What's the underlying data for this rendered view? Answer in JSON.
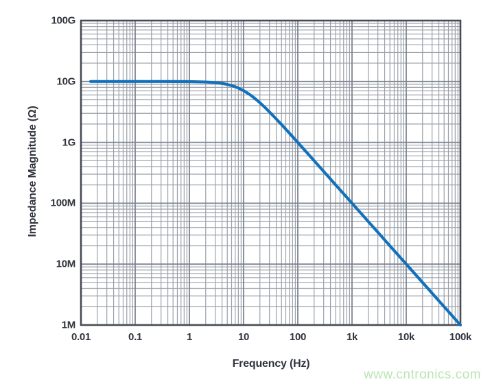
{
  "figure": {
    "background": "#ffffff"
  },
  "colors": {
    "curve": "#1271bc",
    "grid_minor": "#9aa0a9",
    "grid_major": "#7e8591",
    "frame": "#454a54",
    "text": "#2f333d",
    "watermark": "#b9e6b1"
  },
  "watermark": {
    "text": "www.cntronics.com"
  },
  "chart_data": {
    "type": "line",
    "title": "",
    "xlabel": "Frequency (Hz)",
    "ylabel": "Impedance Magnitude (Ω)",
    "x_scale": "log",
    "y_scale": "log",
    "xlim": [
      0.01,
      100000
    ],
    "ylim": [
      1000000,
      100000000000
    ],
    "grid": "major and minor log gridlines on both axes",
    "legend": "none",
    "x_ticks": [
      {
        "value": 0.01,
        "label": "0.01"
      },
      {
        "value": 0.1,
        "label": "0.1"
      },
      {
        "value": 1,
        "label": "1"
      },
      {
        "value": 10,
        "label": "10"
      },
      {
        "value": 100,
        "label": "100"
      },
      {
        "value": 1000,
        "label": "1k"
      },
      {
        "value": 10000,
        "label": "10k"
      },
      {
        "value": 100000,
        "label": "100k"
      }
    ],
    "y_ticks": [
      {
        "value": 1000000,
        "label": "1M"
      },
      {
        "value": 10000000,
        "label": "10M"
      },
      {
        "value": 100000000,
        "label": "100M"
      },
      {
        "value": 1000000000,
        "label": "1G"
      },
      {
        "value": 10000000000,
        "label": "10G"
      },
      {
        "value": 100000000000,
        "label": "100G"
      }
    ],
    "series": [
      {
        "name": "Impedance Magnitude",
        "color": "#1271bc",
        "description": "Flat at 10 GΩ with single-pole rolloff, corner ~10 Hz, -20 dB/decade to 1 MΩ at 100 kHz",
        "points": [
          [
            0.015,
            10000000000
          ],
          [
            0.03,
            10000000000
          ],
          [
            0.1,
            10000000000
          ],
          [
            0.3,
            9999550000
          ],
          [
            1,
            9950370000
          ],
          [
            2,
            9805810000
          ],
          [
            3,
            9578260000
          ],
          [
            4,
            9284770000
          ],
          [
            5,
            8944270000
          ],
          [
            6,
            8574930000
          ],
          [
            7,
            8192320000
          ],
          [
            8,
            7808690000
          ],
          [
            10,
            7071070000
          ],
          [
            13,
            6097110000
          ],
          [
            16,
            5299990000
          ],
          [
            20,
            4472140000
          ],
          [
            25,
            3713910000
          ],
          [
            30,
            3162280000
          ],
          [
            40,
            2425360000
          ],
          [
            50,
            1961160000
          ],
          [
            70,
            1414210000
          ],
          [
            100,
            995037000
          ],
          [
            150,
            665190000
          ],
          [
            200,
            499938000
          ],
          [
            300,
            333148000
          ],
          [
            500,
            199980000
          ],
          [
            700,
            142843000
          ],
          [
            1000,
            99995000
          ],
          [
            2000,
            49999400
          ],
          [
            5000,
            19999900
          ],
          [
            10000,
            9999950
          ],
          [
            20000,
            5000000
          ],
          [
            50000,
            2000000
          ],
          [
            100000,
            1000000
          ]
        ]
      }
    ]
  }
}
